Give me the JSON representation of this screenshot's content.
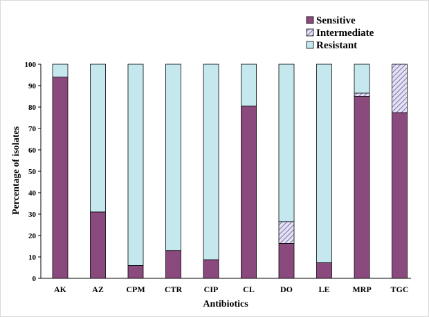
{
  "chart_data": {
    "type": "bar",
    "stacked": true,
    "title": "",
    "xlabel": "Antibiotics",
    "ylabel": "Percentage  of isolates",
    "ylim": [
      0,
      100
    ],
    "yticks": [
      0,
      10,
      20,
      30,
      40,
      50,
      60,
      70,
      80,
      90,
      100
    ],
    "categories": [
      "AK",
      "AZ",
      "CPM",
      "CTR",
      "CIP",
      "CL",
      "DO",
      "LE",
      "MRP",
      "TGC"
    ],
    "series": [
      {
        "name": "Sensitive",
        "color": "#8b4a7e",
        "pattern": "solid",
        "values": [
          94,
          31,
          6,
          13,
          8.7,
          80.5,
          16.3,
          7.3,
          85,
          77.4
        ]
      },
      {
        "name": "Intermediate",
        "color": "#c9c6e6",
        "pattern": "diagonal-hatch",
        "values": [
          0,
          0,
          0,
          0,
          0,
          0,
          10.2,
          0,
          1.5,
          22.6
        ]
      },
      {
        "name": "Resistant",
        "color": "#c5e8ef",
        "pattern": "solid",
        "values": [
          6,
          69,
          94,
          87,
          91.3,
          19.5,
          73.5,
          92.7,
          13.5,
          0
        ]
      }
    ],
    "legend_position": "top-right",
    "grid": false
  }
}
